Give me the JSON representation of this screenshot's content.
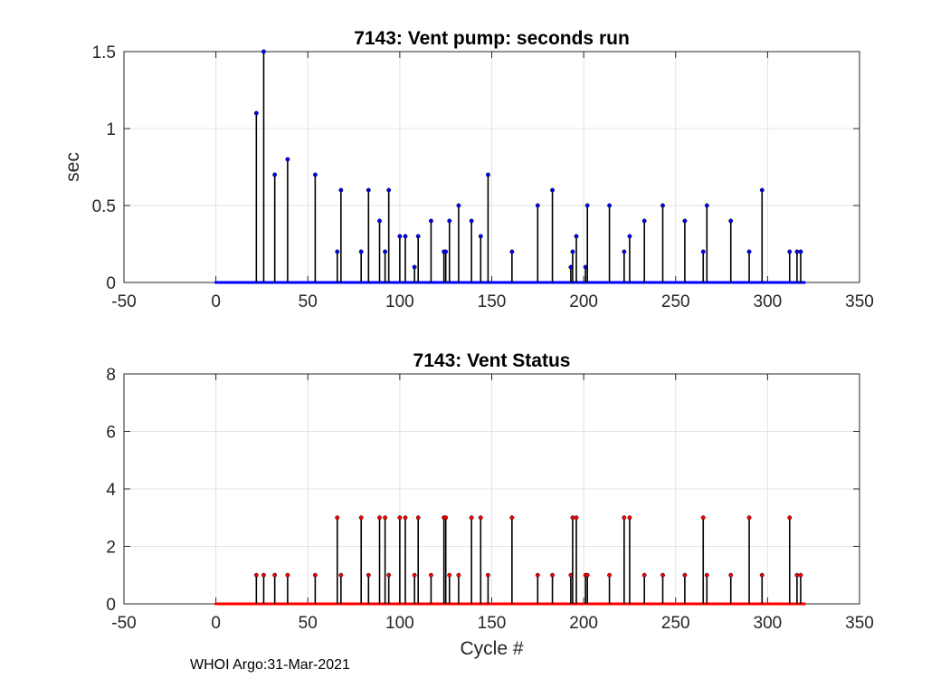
{
  "chart_data": [
    {
      "type": "stem",
      "title": "7143: Vent pump: seconds run",
      "xlabel": "",
      "ylabel": "sec",
      "xlim": [
        -50,
        350
      ],
      "ylim": [
        0,
        1.5
      ],
      "xticks": [
        -50,
        0,
        50,
        100,
        150,
        200,
        250,
        300,
        350
      ],
      "yticks": [
        0,
        0.5,
        1,
        1.5
      ],
      "xtick_labels": [
        "-50",
        "0",
        "50",
        "100",
        "150",
        "200",
        "250",
        "300",
        "350"
      ],
      "ytick_labels": [
        "0",
        "0.5",
        "1",
        "1.5"
      ],
      "grid": true,
      "marker_color": "#0000ff",
      "cycle_range": [
        0,
        320
      ],
      "points": [
        [
          22,
          1.1
        ],
        [
          26,
          1.5
        ],
        [
          32,
          0.7
        ],
        [
          39,
          0.8
        ],
        [
          54,
          0.7
        ],
        [
          66,
          0.2
        ],
        [
          68,
          0.6
        ],
        [
          79,
          0.2
        ],
        [
          83,
          0.6
        ],
        [
          89,
          0.4
        ],
        [
          92,
          0.2
        ],
        [
          94,
          0.6
        ],
        [
          100,
          0.3
        ],
        [
          103,
          0.3
        ],
        [
          108,
          0.1
        ],
        [
          110,
          0.3
        ],
        [
          117,
          0.4
        ],
        [
          124,
          0.2
        ],
        [
          125,
          0.2
        ],
        [
          127,
          0.4
        ],
        [
          132,
          0.5
        ],
        [
          139,
          0.4
        ],
        [
          144,
          0.3
        ],
        [
          148,
          0.7
        ],
        [
          161,
          0.2
        ],
        [
          175,
          0.5
        ],
        [
          183,
          0.6
        ],
        [
          193,
          0.1
        ],
        [
          194,
          0.2
        ],
        [
          196,
          0.3
        ],
        [
          201,
          0.1
        ],
        [
          202,
          0.5
        ],
        [
          214,
          0.5
        ],
        [
          222,
          0.2
        ],
        [
          225,
          0.3
        ],
        [
          233,
          0.4
        ],
        [
          243,
          0.5
        ],
        [
          255,
          0.4
        ],
        [
          265,
          0.2
        ],
        [
          267,
          0.5
        ],
        [
          280,
          0.4
        ],
        [
          290,
          0.2
        ],
        [
          297,
          0.6
        ],
        [
          312,
          0.2
        ],
        [
          316,
          0.2
        ],
        [
          318,
          0.2
        ]
      ]
    },
    {
      "type": "stem",
      "title": "7143: Vent Status",
      "xlabel": "Cycle #",
      "ylabel": "",
      "xlim": [
        -50,
        350
      ],
      "ylim": [
        0,
        8
      ],
      "xticks": [
        -50,
        0,
        50,
        100,
        150,
        200,
        250,
        300,
        350
      ],
      "yticks": [
        0,
        2,
        4,
        6,
        8
      ],
      "xtick_labels": [
        "-50",
        "0",
        "50",
        "100",
        "150",
        "200",
        "250",
        "300",
        "350"
      ],
      "ytick_labels": [
        "0",
        "2",
        "4",
        "6",
        "8"
      ],
      "grid": true,
      "marker_color": "#ff0000",
      "cycle_range": [
        0,
        320
      ],
      "points": [
        [
          22,
          1
        ],
        [
          26,
          1
        ],
        [
          32,
          1
        ],
        [
          39,
          1
        ],
        [
          54,
          1
        ],
        [
          66,
          3
        ],
        [
          68,
          1
        ],
        [
          79,
          3
        ],
        [
          83,
          1
        ],
        [
          89,
          3
        ],
        [
          92,
          3
        ],
        [
          94,
          1
        ],
        [
          100,
          3
        ],
        [
          103,
          3
        ],
        [
          108,
          1
        ],
        [
          110,
          3
        ],
        [
          117,
          1
        ],
        [
          124,
          3
        ],
        [
          125,
          3
        ],
        [
          127,
          1
        ],
        [
          132,
          1
        ],
        [
          139,
          3
        ],
        [
          144,
          3
        ],
        [
          148,
          1
        ],
        [
          161,
          3
        ],
        [
          175,
          1
        ],
        [
          183,
          1
        ],
        [
          193,
          1
        ],
        [
          194,
          3
        ],
        [
          196,
          3
        ],
        [
          201,
          1
        ],
        [
          202,
          1
        ],
        [
          214,
          1
        ],
        [
          222,
          3
        ],
        [
          225,
          3
        ],
        [
          233,
          1
        ],
        [
          243,
          1
        ],
        [
          255,
          1
        ],
        [
          265,
          3
        ],
        [
          267,
          1
        ],
        [
          280,
          1
        ],
        [
          290,
          3
        ],
        [
          297,
          1
        ],
        [
          312,
          3
        ],
        [
          316,
          1
        ],
        [
          318,
          1
        ]
      ]
    }
  ],
  "footer": "WHOI Argo:31-Mar-2021"
}
